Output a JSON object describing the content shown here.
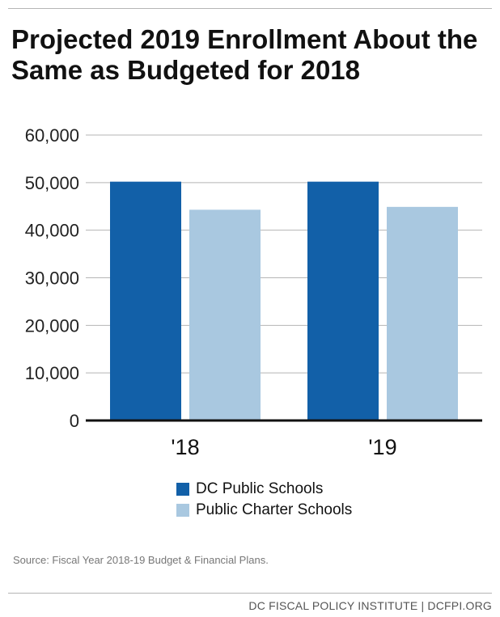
{
  "title": "Projected 2019 Enrollment About the Same as Budgeted for 2018",
  "source": "Source: Fiscal Year 2018-19 Budget & Financial Plans.",
  "footer": "DC FISCAL POLICY INSTITUTE | DCFPI.ORG",
  "colors": {
    "dc_public": "#1260a8",
    "charter": "#a9c8e0",
    "grid": "#b5b5b5",
    "axis": "#111111"
  },
  "chart_data": {
    "type": "bar",
    "title": "Projected 2019 Enrollment About the Same as Budgeted for 2018",
    "xlabel": "",
    "ylabel": "",
    "categories": [
      "'18",
      "'19"
    ],
    "series": [
      {
        "name": "DC Public Schools",
        "values": [
          50200,
          50200
        ]
      },
      {
        "name": "Public Charter Schools",
        "values": [
          44300,
          44900
        ]
      }
    ],
    "ylim": [
      0,
      60000
    ],
    "yticks": [
      0,
      10000,
      20000,
      30000,
      40000,
      50000,
      60000
    ],
    "ytick_labels": [
      "0",
      "10,000",
      "20,000",
      "30,000",
      "40,000",
      "50,000",
      "60,000"
    ],
    "grid": true,
    "legend": "bottom"
  }
}
